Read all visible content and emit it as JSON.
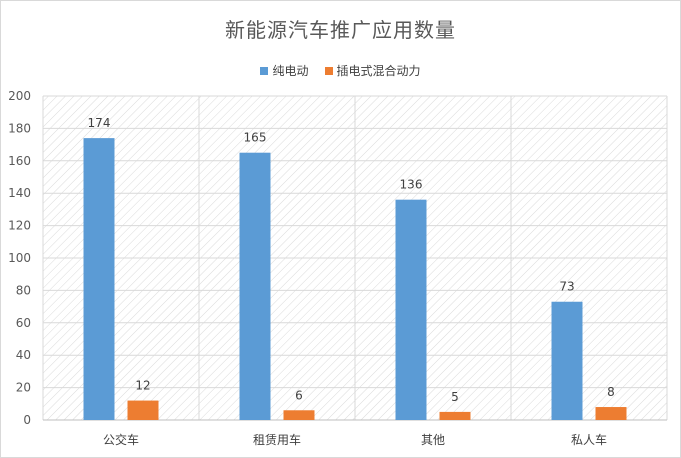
{
  "chart_data": {
    "type": "bar",
    "title": "新能源汽车推广应用数量",
    "categories": [
      "公交车",
      "租赁用车",
      "其他",
      "私人车"
    ],
    "series": [
      {
        "name": "纯电动",
        "values": [
          174,
          165,
          136,
          73
        ],
        "color": "#5b9bd5"
      },
      {
        "name": "插电式混合动力",
        "values": [
          12,
          6,
          5,
          8
        ],
        "color": "#ed7d31"
      }
    ],
    "ylim": [
      0,
      200
    ],
    "yticks": [
      0,
      20,
      40,
      60,
      80,
      100,
      120,
      140,
      160,
      180,
      200
    ],
    "grid": true,
    "legend_position": "top"
  }
}
